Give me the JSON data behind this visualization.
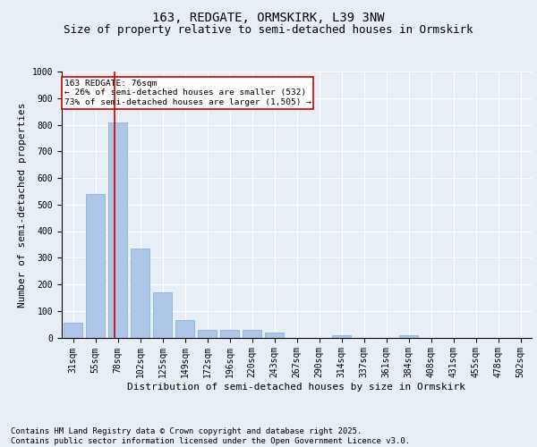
{
  "title_line1": "163, REDGATE, ORMSKIRK, L39 3NW",
  "title_line2": "Size of property relative to semi-detached houses in Ormskirk",
  "xlabel": "Distribution of semi-detached houses by size in Ormskirk",
  "ylabel": "Number of semi-detached properties",
  "categories": [
    "31sqm",
    "55sqm",
    "78sqm",
    "102sqm",
    "125sqm",
    "149sqm",
    "172sqm",
    "196sqm",
    "220sqm",
    "243sqm",
    "267sqm",
    "290sqm",
    "314sqm",
    "337sqm",
    "361sqm",
    "384sqm",
    "408sqm",
    "431sqm",
    "455sqm",
    "478sqm",
    "502sqm"
  ],
  "values": [
    55,
    540,
    810,
    335,
    170,
    65,
    30,
    27,
    27,
    20,
    0,
    0,
    10,
    0,
    0,
    10,
    0,
    0,
    0,
    0,
    0
  ],
  "bar_color": "#aec6e8",
  "bar_edge_color": "#7aafd4",
  "redline_label": "163 REDGATE: 76sqm",
  "annotation_smaller": "← 26% of semi-detached houses are smaller (532)",
  "annotation_larger": "73% of semi-detached houses are larger (1,505) →",
  "annotation_box_color": "#ffffff",
  "annotation_box_edge": "#cc0000",
  "property_line_color": "#cc0000",
  "redline_x": 1.85,
  "ylim": [
    0,
    1000
  ],
  "yticks": [
    0,
    100,
    200,
    300,
    400,
    500,
    600,
    700,
    800,
    900,
    1000
  ],
  "footer_line1": "Contains HM Land Registry data © Crown copyright and database right 2025.",
  "footer_line2": "Contains public sector information licensed under the Open Government Licence v3.0.",
  "background_color": "#e8eef5",
  "plot_bg_color": "#e8eef5",
  "grid_color": "#ffffff",
  "title_fontsize": 10,
  "subtitle_fontsize": 9,
  "axis_label_fontsize": 8,
  "tick_fontsize": 7,
  "footer_fontsize": 6.5
}
